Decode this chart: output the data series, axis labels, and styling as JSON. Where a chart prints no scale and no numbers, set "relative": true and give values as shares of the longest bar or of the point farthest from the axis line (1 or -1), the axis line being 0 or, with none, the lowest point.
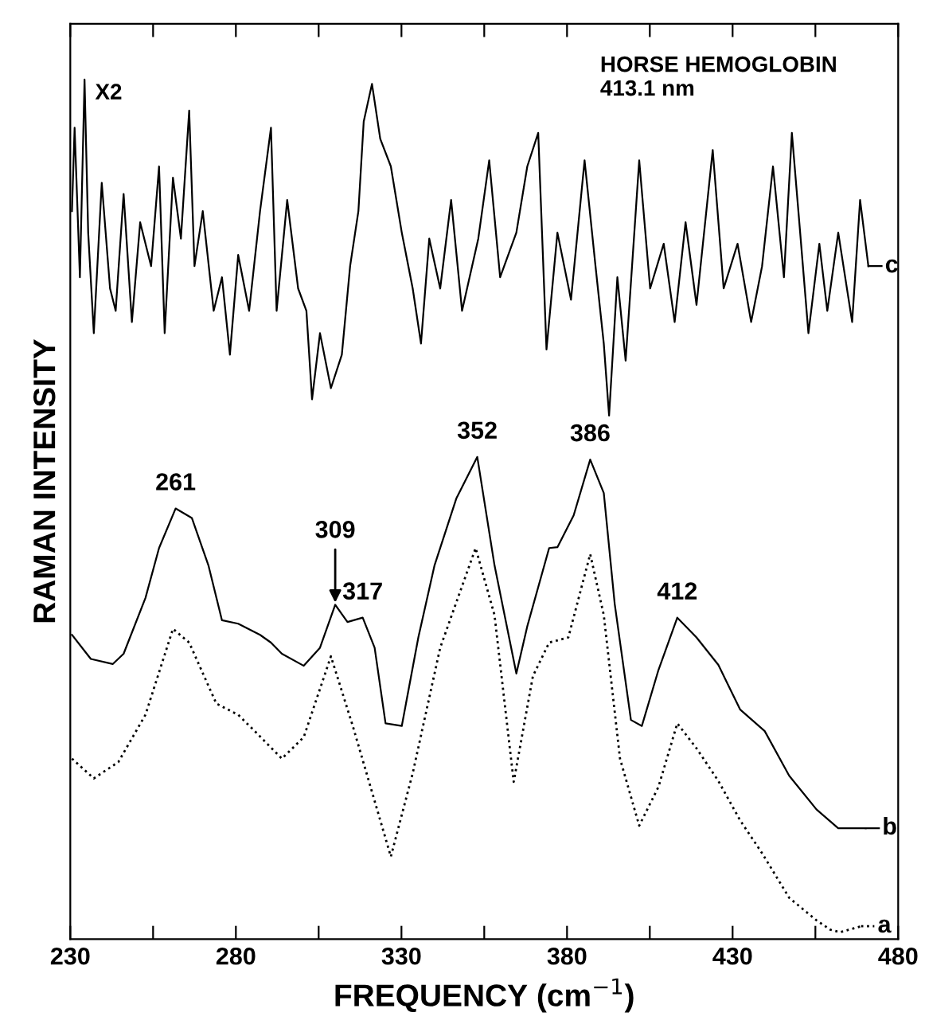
{
  "chart_data": {
    "type": "line",
    "relative": true,
    "xlabel": "FREQUENCY (cm$^{−1}$)",
    "ylabel": "RAMAN INTENSITY",
    "xlim": [
      230,
      480
    ],
    "xticks": [
      230,
      {
        "value": 255,
        "label": null
      },
      280,
      {
        "value": 305,
        "label": null
      },
      330,
      {
        "value": 355,
        "label": null
      },
      380,
      {
        "value": 405,
        "label": null
      },
      430,
      {
        "value": 455,
        "label": null
      },
      480
    ],
    "grid": false,
    "legend": "right",
    "marker": "none",
    "annotations": [
      "X2",
      "HORSE HEMOGLOBIN\n413.1 nm",
      {
        "text": "261",
        "x": 261.8,
        "y": 0.501
      },
      {
        "text": "309",
        "x": 310.0,
        "y": 0.389
      },
      {
        "text": "317",
        "x": 318.3,
        "y": 0.374
      },
      {
        "text": "352",
        "x": 352.9,
        "y": 0.561
      },
      {
        "text": "386",
        "x": 387.0,
        "y": 0.558
      },
      {
        "text": "412",
        "x": 413.3,
        "y": 0.374
      }
    ],
    "series": [
      {
        "name": "a",
        "color": "#000000",
        "line_style": "dotted",
        "x": [
          230.5,
          237.1,
          244.5,
          252.7,
          261.0,
          265.9,
          274.1,
          280.7,
          285.7,
          293.9,
          300.5,
          308.7,
          315.3,
          326.8,
          333.4,
          341.7,
          352.4,
          358.1,
          363.9,
          369.7,
          374.6,
          380.4,
          387.0,
          391.1,
          396.0,
          401.8,
          407.6,
          413.3,
          419.1,
          425.7,
          432.3,
          438.9,
          447.1,
          455.3,
          459.5,
          462.5,
          468.8
        ],
        "values": [
          0.21,
          0.187,
          0.206,
          0.261,
          0.361,
          0.345,
          0.274,
          0.261,
          0.242,
          0.21,
          0.235,
          0.329,
          0.248,
          0.096,
          0.193,
          0.339,
          0.455,
          0.377,
          0.183,
          0.306,
          0.345,
          0.351,
          0.448,
          0.377,
          0.21,
          0.132,
          0.177,
          0.251,
          0.222,
          0.184,
          0.138,
          0.1,
          0.048,
          0.022,
          0.011,
          0.008,
          0.015
        ]
      },
      {
        "name": "b",
        "color": "#000000",
        "line_style": "solid",
        "x": [
          230.5,
          236.2,
          242.8,
          246.1,
          252.7,
          256.8,
          261.8,
          266.7,
          271.7,
          275.8,
          280.7,
          287.3,
          290.6,
          293.9,
          300.5,
          305.4,
          310.0,
          313.7,
          318.3,
          321.9,
          325.2,
          330.1,
          335.1,
          340.0,
          346.6,
          352.9,
          358.1,
          364.7,
          368.0,
          374.6,
          377.1,
          382.0,
          387.0,
          391.1,
          394.4,
          399.3,
          402.6,
          407.6,
          413.3,
          419.1,
          425.7,
          432.3,
          439.7,
          447.1,
          455.3,
          461.9,
          470.2
        ],
        "values": [
          0.354,
          0.326,
          0.32,
          0.332,
          0.397,
          0.455,
          0.501,
          0.49,
          0.435,
          0.371,
          0.367,
          0.354,
          0.345,
          0.332,
          0.318,
          0.339,
          0.389,
          0.369,
          0.374,
          0.339,
          0.251,
          0.248,
          0.351,
          0.435,
          0.513,
          0.561,
          0.435,
          0.309,
          0.364,
          0.455,
          0.456,
          0.493,
          0.558,
          0.519,
          0.39,
          0.255,
          0.248,
          0.313,
          0.374,
          0.351,
          0.319,
          0.267,
          0.242,
          0.19,
          0.151,
          0.129,
          0.129
        ]
      },
      {
        "name": "c",
        "color": "#000000",
        "line_style": "solid",
        "x": [
          230.5,
          231.3,
          232.9,
          234.3,
          235.4,
          237.1,
          239.5,
          242.0,
          243.7,
          246.1,
          248.6,
          251.1,
          254.4,
          256.8,
          258.5,
          261.0,
          263.4,
          265.9,
          267.5,
          270.0,
          273.3,
          275.8,
          278.2,
          280.7,
          284.0,
          287.3,
          290.6,
          292.3,
          295.5,
          298.8,
          301.3,
          303.0,
          305.4,
          308.7,
          312.0,
          314.5,
          317.0,
          318.6,
          321.1,
          323.6,
          326.8,
          330.1,
          333.4,
          335.9,
          338.4,
          341.7,
          345.0,
          348.3,
          353.2,
          356.5,
          359.8,
          364.7,
          368.0,
          371.3,
          373.8,
          377.1,
          381.2,
          385.3,
          388.6,
          391.1,
          392.7,
          395.2,
          397.7,
          401.8,
          405.1,
          409.2,
          412.5,
          415.8,
          419.1,
          424.0,
          427.3,
          431.5,
          435.6,
          438.9,
          442.2,
          445.5,
          447.9,
          450.4,
          452.9,
          456.2,
          458.6,
          461.9,
          466.1,
          468.5,
          471.0
        ],
        "values": [
          0.847,
          0.944,
          0.77,
          1.0,
          0.822,
          0.705,
          0.88,
          0.757,
          0.731,
          0.867,
          0.718,
          0.834,
          0.783,
          0.899,
          0.705,
          0.886,
          0.815,
          0.964,
          0.783,
          0.847,
          0.731,
          0.77,
          0.68,
          0.796,
          0.731,
          0.847,
          0.944,
          0.731,
          0.86,
          0.757,
          0.731,
          0.628,
          0.705,
          0.641,
          0.68,
          0.783,
          0.847,
          0.951,
          0.995,
          0.931,
          0.899,
          0.822,
          0.757,
          0.693,
          0.815,
          0.757,
          0.86,
          0.731,
          0.815,
          0.906,
          0.77,
          0.822,
          0.899,
          0.938,
          0.686,
          0.822,
          0.744,
          0.906,
          0.783,
          0.693,
          0.609,
          0.77,
          0.673,
          0.906,
          0.757,
          0.809,
          0.718,
          0.834,
          0.738,
          0.918,
          0.757,
          0.809,
          0.718,
          0.783,
          0.899,
          0.77,
          0.938,
          0.822,
          0.705,
          0.809,
          0.731,
          0.822,
          0.718,
          0.86,
          0.783
        ]
      }
    ]
  }
}
